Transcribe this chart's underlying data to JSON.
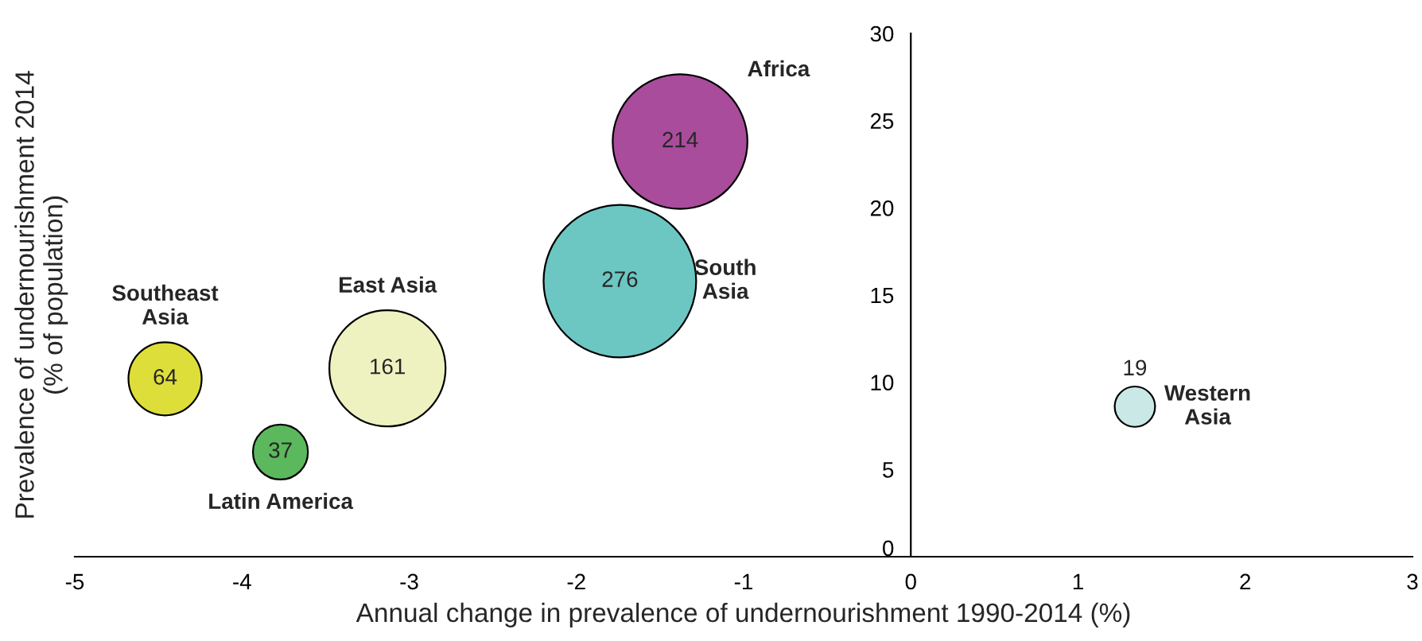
{
  "chart_data": {
    "type": "bubble",
    "xlabel": "Annual change in prevalence of undernourishment 1990-2014 (%)",
    "ylabel": "Prevalence of undernourishment 2014\n(% of population)",
    "x": [
      -1.38,
      -1.74,
      -3.13,
      -4.46,
      -3.77,
      1.34
    ],
    "values": [
      23.8,
      15.8,
      10.8,
      10.2,
      6.0,
      8.6
    ],
    "sizes": [
      0.78,
      1,
      0.58,
      0.23,
      0.13,
      0.07
    ],
    "colors": [
      "#a94c9c",
      "#6cc6c2",
      "#eef2c0",
      "#dede3a",
      "#5cb85c",
      "#c9e8e6"
    ],
    "annotations": [
      "Africa",
      "South\nAsia",
      "East Asia",
      "Southeast\nAsia",
      "Latin America",
      "Western\nAsia",
      {
        "text": "214",
        "x": -1.38,
        "y": 23.8
      },
      {
        "text": "276",
        "x": -1.74,
        "y": 15.8
      },
      {
        "text": "161",
        "x": -3.13,
        "y": 10.8
      },
      {
        "text": "64",
        "x": -4.46,
        "y": 10.2
      },
      {
        "text": "37",
        "x": -3.77,
        "y": 6.0
      },
      {
        "text": "19",
        "x": 1.34,
        "y": 8.6
      }
    ],
    "xlim": [
      -5,
      3
    ],
    "xticks": [
      -5,
      -4,
      -3,
      -2,
      -1,
      0,
      1,
      2,
      3
    ],
    "ylim": [
      0,
      30
    ],
    "yticks": [
      0,
      5,
      10,
      15,
      20,
      25,
      30
    ]
  }
}
